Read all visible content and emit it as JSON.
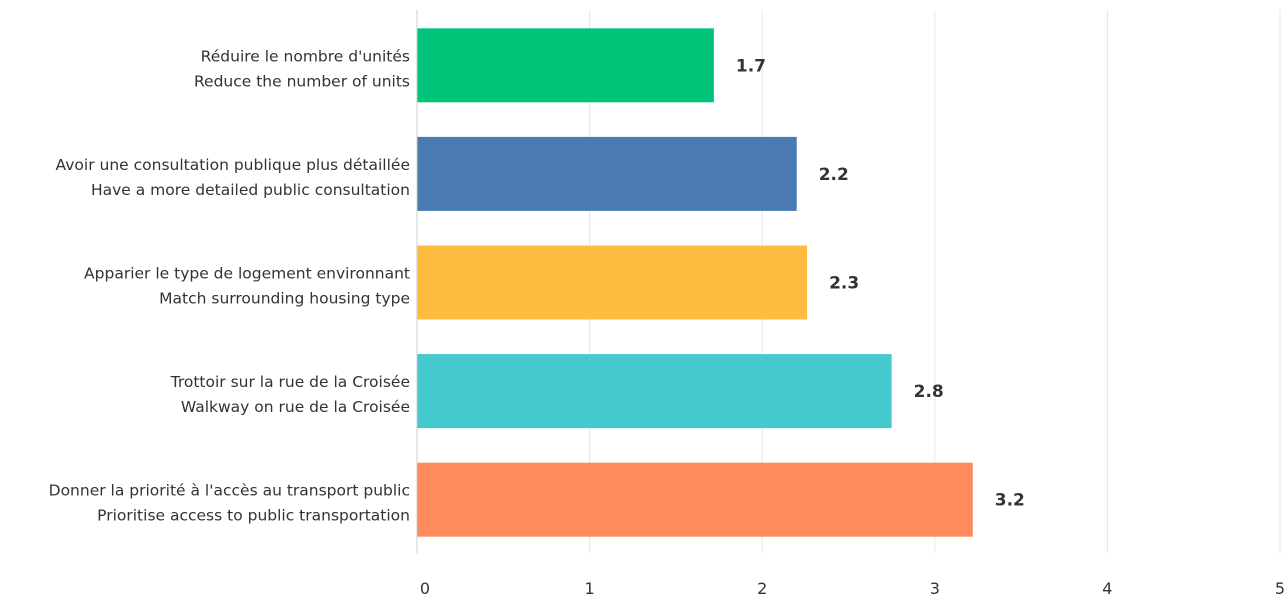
{
  "chart_data": {
    "type": "bar",
    "orientation": "horizontal",
    "categories": [
      [
        "Réduire le nombre d'unités",
        "Reduce the number of units"
      ],
      [
        "Avoir une consultation publique plus détaillée",
        "Have a more detailed public consultation"
      ],
      [
        "Apparier le type de logement environnant",
        "Match surrounding housing type"
      ],
      [
        "Trottoir sur la rue de la Croisée",
        "Walkway on rue de la Croisée"
      ],
      [
        "Donner la priorité à l'accès au transport public",
        "Prioritise access to public transportation"
      ]
    ],
    "values": [
      1.72,
      2.2,
      2.26,
      2.75,
      3.22
    ],
    "value_labels": [
      "1.7",
      "2.2",
      "2.3",
      "2.8",
      "3.2"
    ],
    "colors": [
      "#00c47a",
      "#4a7ab2",
      "#fdbc40",
      "#44c9cc",
      "#ff8a5b"
    ],
    "xlim": [
      0,
      5
    ],
    "xticks": [
      "0",
      "1",
      "2",
      "3",
      "4",
      "5"
    ],
    "grid": true,
    "title": "",
    "xlabel": "",
    "ylabel": ""
  }
}
